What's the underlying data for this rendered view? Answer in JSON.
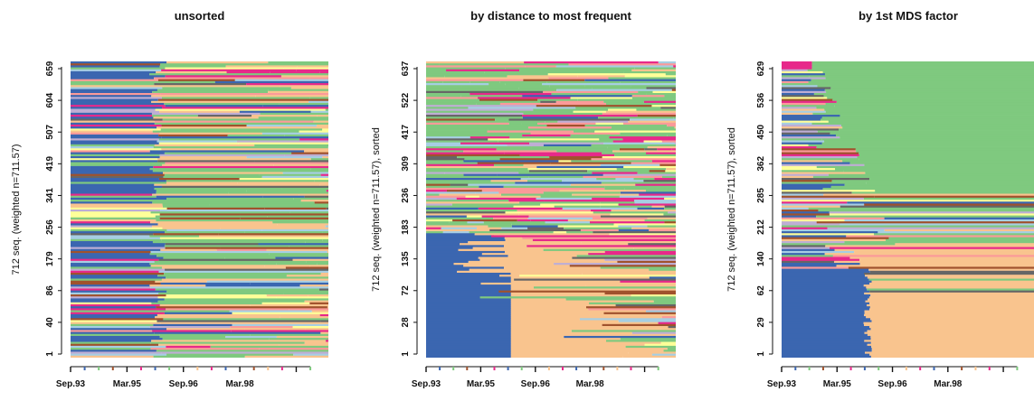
{
  "chart_data": [
    {
      "type": "heatmap",
      "title": "unsorted",
      "ylabel": "712 seq. (weighted n=711.57)",
      "yticks": [
        "1",
        "40",
        "86",
        "179",
        "256",
        "341",
        "419",
        "507",
        "604",
        "659"
      ],
      "xticks": [
        "Sep.93",
        "Mar.95",
        "Sep.96",
        "Mar.98"
      ],
      "sorting": "unsorted",
      "state_colors": [
        "#3b66b0",
        "#f9c48e",
        "#7fc97f",
        "#e7298a",
        "#a6cee3",
        "#beaed4",
        "#ffff99",
        "#a0522d",
        "#fb9a99",
        "#666666"
      ]
    },
    {
      "type": "heatmap",
      "title": "by distance to most frequent",
      "ylabel": "712 seq. (weighted n=711.57), sorted",
      "yticks": [
        "1",
        "28",
        "72",
        "135",
        "183",
        "236",
        "309",
        "417",
        "522",
        "637"
      ],
      "xticks": [
        "Sep.93",
        "Mar.95",
        "Sep.96",
        "Mar.98"
      ],
      "sorting": "distance",
      "state_colors": [
        "#3b66b0",
        "#f9c48e",
        "#7fc97f",
        "#e7298a",
        "#a6cee3",
        "#beaed4",
        "#ffff99",
        "#a0522d",
        "#fb9a99",
        "#666666"
      ]
    },
    {
      "type": "heatmap",
      "title": "by 1st MDS factor",
      "ylabel": "712 seq. (weighted n=711.57), sorted",
      "yticks": [
        "1",
        "29",
        "62",
        "140",
        "212",
        "285",
        "362",
        "450",
        "536",
        "629"
      ],
      "xticks": [
        "Sep.93",
        "Mar.95",
        "Sep.96",
        "Mar.98"
      ],
      "sorting": "mds",
      "state_colors": [
        "#3b66b0",
        "#f9c48e",
        "#7fc97f",
        "#e7298a",
        "#a6cee3",
        "#beaed4",
        "#ffff99",
        "#a0522d",
        "#fb9a99",
        "#666666"
      ]
    }
  ]
}
